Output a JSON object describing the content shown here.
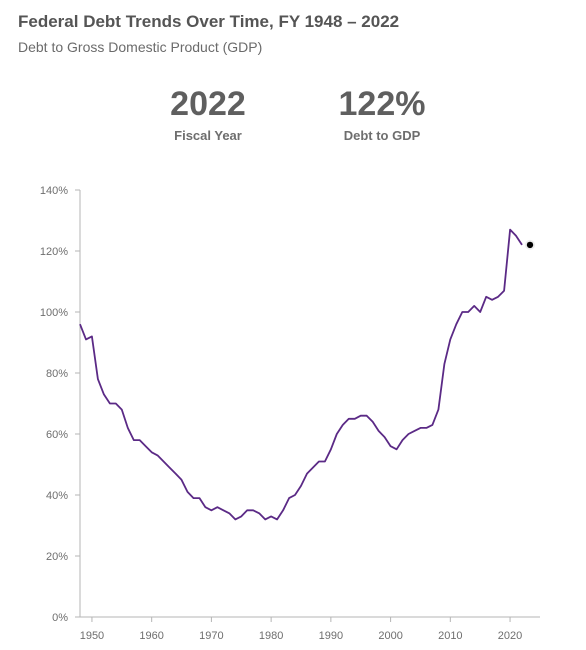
{
  "header": {
    "title": "Federal Debt Trends Over Time, FY 1948 – 2022",
    "subtitle": "Debt to Gross Domestic Product (GDP)"
  },
  "stats": [
    {
      "value": "2022",
      "label": "Fiscal Year"
    },
    {
      "value": "122%",
      "label": "Debt to GDP"
    }
  ],
  "colors": {
    "line": "#5b2a86",
    "marker": "#000000",
    "axis": "#b5b5b5",
    "text": "#6e6e6e"
  },
  "chart_data": {
    "type": "line",
    "title": "Federal Debt Trends Over Time, FY 1948 – 2022",
    "subtitle": "Debt to Gross Domestic Product (GDP)",
    "xlabel": "",
    "ylabel": "",
    "xlim": [
      1948,
      2022
    ],
    "ylim": [
      0,
      140
    ],
    "x_ticks": [
      1950,
      1960,
      1970,
      1980,
      1990,
      2000,
      2010,
      2020
    ],
    "x_tick_labels": [
      "1950",
      "1960",
      "1970",
      "1980",
      "1990",
      "2000",
      "2010",
      "2020"
    ],
    "y_ticks": [
      0,
      20,
      40,
      60,
      80,
      100,
      120,
      140
    ],
    "y_tick_labels": [
      "0%",
      "20%",
      "40%",
      "60%",
      "80%",
      "100%",
      "120%",
      "140%"
    ],
    "grid": false,
    "x": [
      1948,
      1949,
      1950,
      1951,
      1952,
      1953,
      1954,
      1955,
      1956,
      1957,
      1958,
      1959,
      1960,
      1961,
      1962,
      1963,
      1964,
      1965,
      1966,
      1967,
      1968,
      1969,
      1970,
      1971,
      1972,
      1973,
      1974,
      1975,
      1976,
      1977,
      1978,
      1979,
      1980,
      1981,
      1982,
      1983,
      1984,
      1985,
      1986,
      1987,
      1988,
      1989,
      1990,
      1991,
      1992,
      1993,
      1994,
      1995,
      1996,
      1997,
      1998,
      1999,
      2000,
      2001,
      2002,
      2003,
      2004,
      2005,
      2006,
      2007,
      2008,
      2009,
      2010,
      2011,
      2012,
      2013,
      2014,
      2015,
      2016,
      2017,
      2018,
      2019,
      2020,
      2021,
      2022
    ],
    "series": [
      {
        "values": [
          96,
          91,
          92,
          78,
          73,
          70,
          70,
          68,
          62,
          58,
          58,
          56,
          54,
          53,
          51,
          49,
          47,
          45,
          41,
          39,
          39,
          36,
          35,
          36,
          35,
          34,
          32,
          33,
          35,
          35,
          34,
          32,
          33,
          32,
          35,
          39,
          40,
          43,
          47,
          49,
          51,
          51,
          55,
          60,
          63,
          65,
          65,
          66,
          66,
          64,
          61,
          59,
          56,
          55,
          58,
          60,
          61,
          62,
          62,
          63,
          68,
          83,
          91,
          96,
          100,
          100,
          102,
          100,
          105,
          104,
          105,
          107,
          127,
          125,
          122
        ]
      }
    ],
    "highlight": {
      "x": 2022,
      "y": 122
    }
  }
}
